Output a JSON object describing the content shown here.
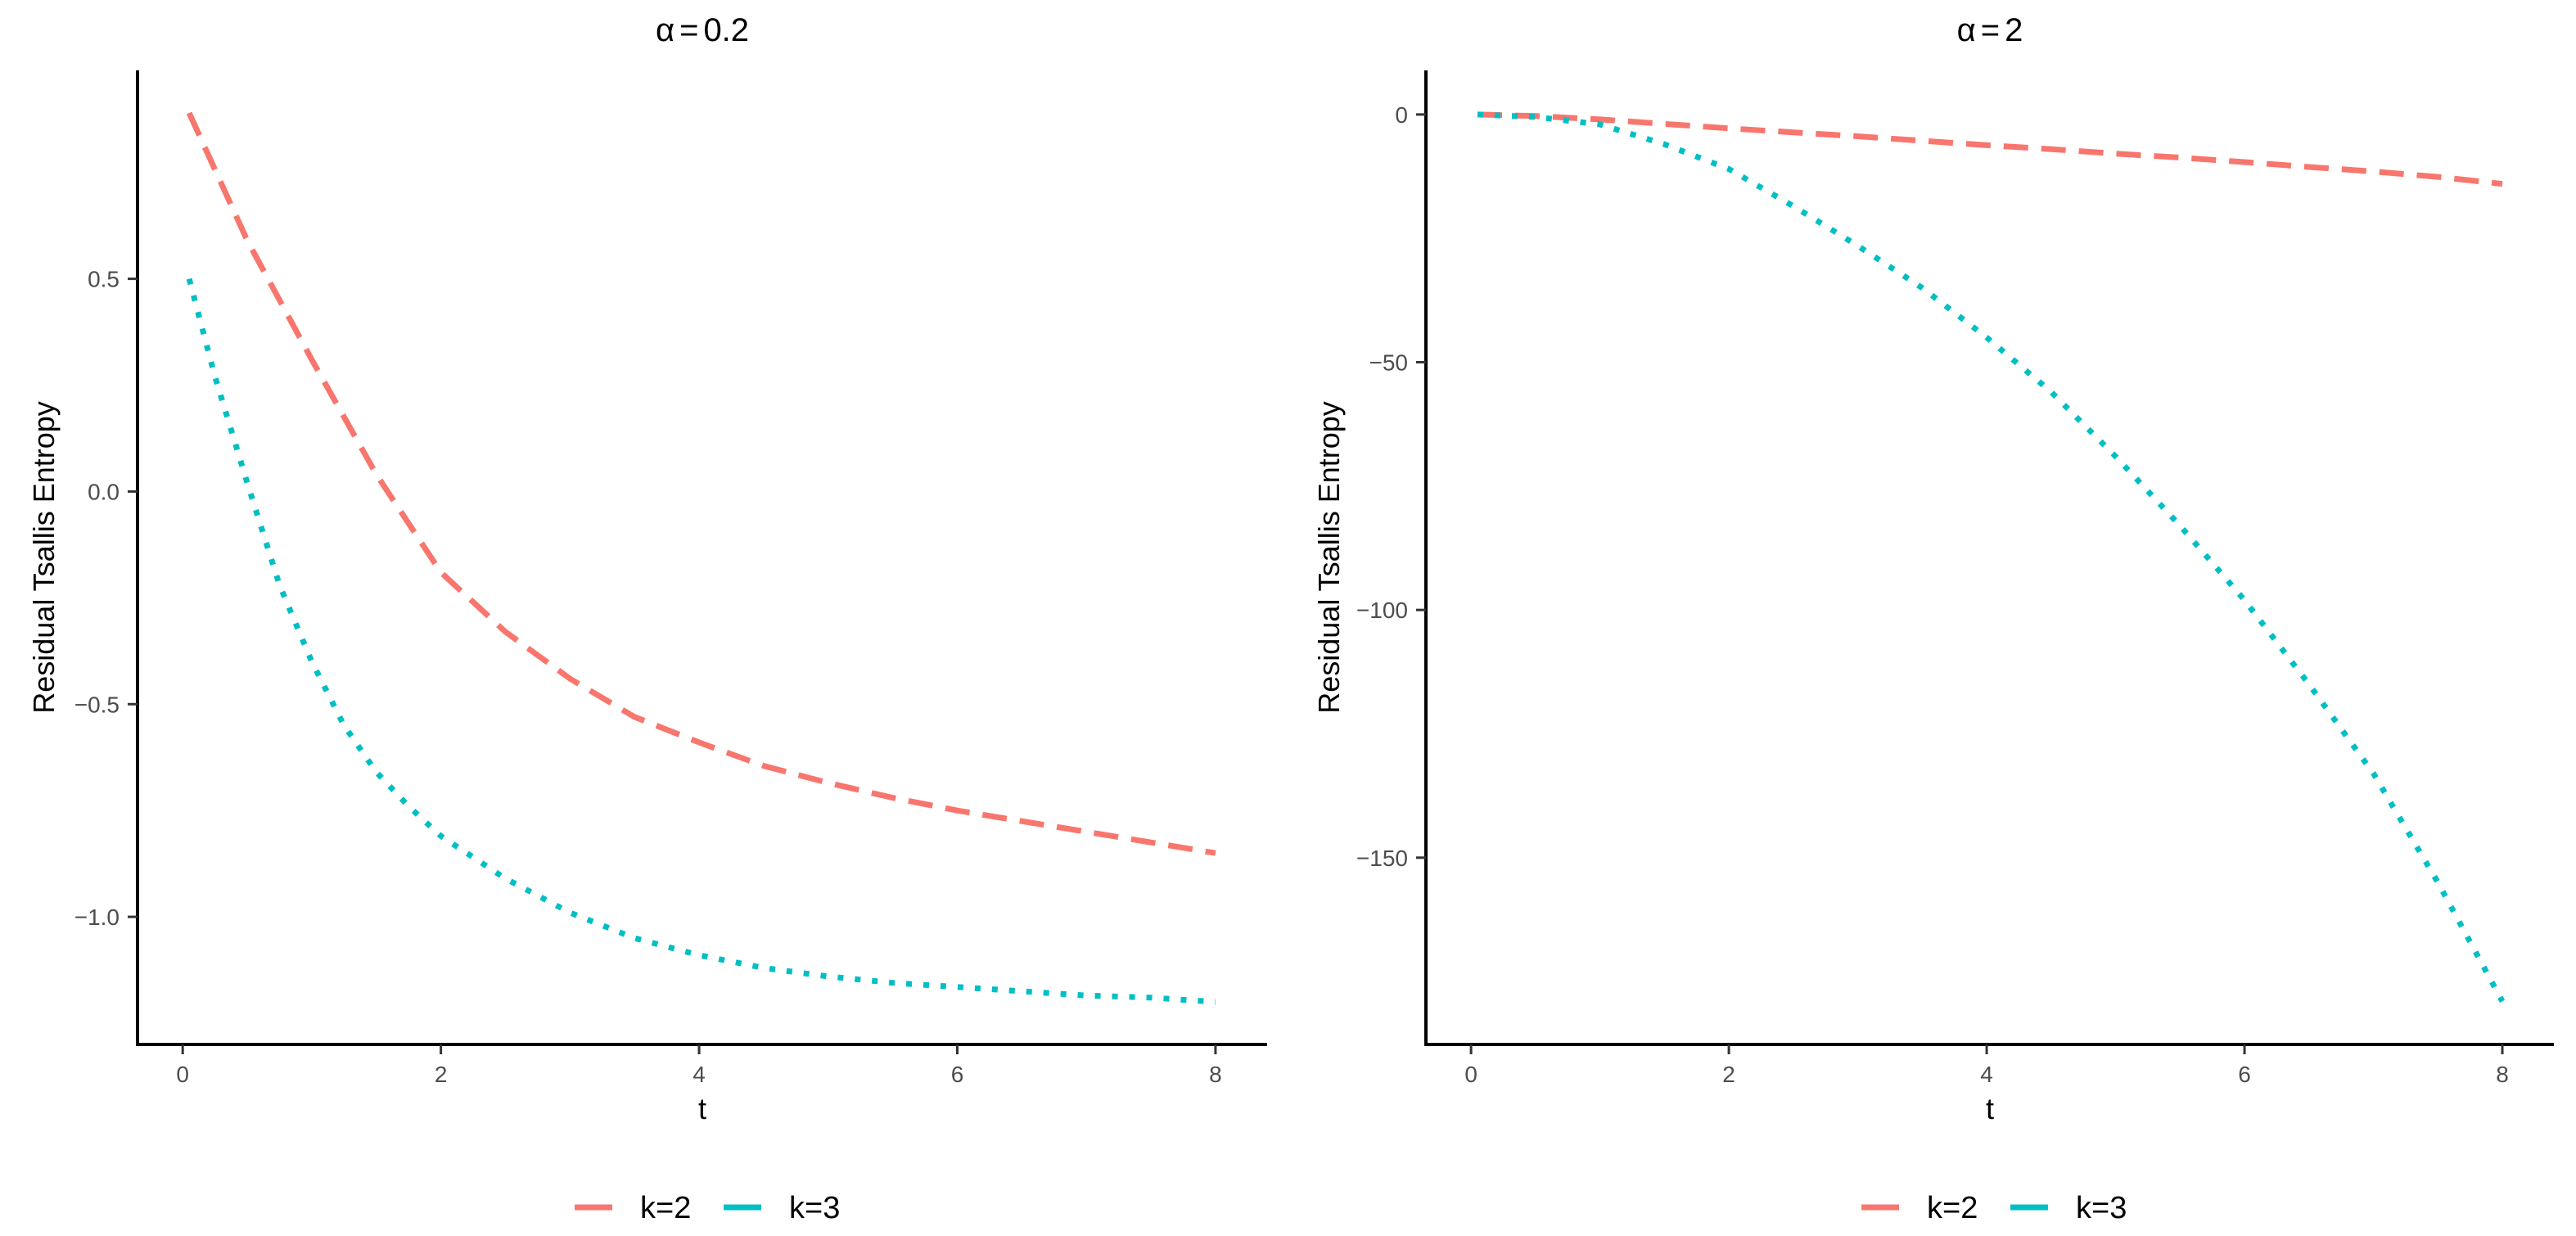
{
  "chart_data": [
    {
      "type": "line",
      "title": "α = 0.2",
      "title_symbol": "α",
      "title_eq": "=",
      "title_value": "0.2",
      "xlabel": "t",
      "ylabel": "Residual Tsallis Entropy",
      "xlim": [
        -0.35,
        8.4
      ],
      "ylim": [
        -1.3,
        0.99
      ],
      "xticks": [
        0,
        2,
        4,
        6,
        8
      ],
      "xtick_labels": [
        "0",
        "2",
        "4",
        "6",
        "8"
      ],
      "yticks": [
        -1.0,
        -0.5,
        0.0,
        0.5
      ],
      "ytick_labels": [
        "−1.0",
        "−0.5",
        "0.0",
        "0.5"
      ],
      "grid": false,
      "series": [
        {
          "name": "k=2",
          "color": "#F8766D",
          "linestyle": "dashed",
          "x": [
            0.05,
            0.5,
            1.0,
            1.5,
            2.0,
            2.5,
            3.0,
            3.5,
            4.0,
            4.5,
            5.0,
            5.5,
            6.0,
            6.5,
            7.0,
            7.5,
            8.0
          ],
          "y": [
            0.89,
            0.59,
            0.31,
            0.04,
            -0.19,
            -0.33,
            -0.44,
            -0.53,
            -0.59,
            -0.645,
            -0.685,
            -0.72,
            -0.75,
            -0.775,
            -0.8,
            -0.825,
            -0.85
          ]
        },
        {
          "name": "k=3",
          "color": "#00BFC4",
          "linestyle": "dotted",
          "x": [
            0.05,
            0.25,
            0.5,
            0.75,
            1.0,
            1.25,
            1.5,
            1.75,
            2.0,
            2.5,
            3.0,
            3.5,
            4.0,
            4.5,
            5.0,
            5.5,
            6.0,
            6.5,
            7.0,
            7.5,
            8.0
          ],
          "y": [
            0.5,
            0.27,
            0.02,
            -0.22,
            -0.4,
            -0.55,
            -0.66,
            -0.74,
            -0.81,
            -0.91,
            -0.99,
            -1.05,
            -1.09,
            -1.12,
            -1.14,
            -1.155,
            -1.165,
            -1.175,
            -1.185,
            -1.19,
            -1.2
          ]
        }
      ],
      "legend": {
        "position": "bottom",
        "entries": [
          "k=2",
          "k=3"
        ]
      }
    },
    {
      "type": "line",
      "title": "α = 2",
      "title_symbol": "α",
      "title_eq": "=",
      "title_value": "2",
      "xlabel": "t",
      "ylabel": "Residual Tsallis Entropy",
      "xlim": [
        -0.35,
        8.4
      ],
      "ylim": [
        -187.7,
        8.9
      ],
      "xticks": [
        0,
        2,
        4,
        6,
        8
      ],
      "xtick_labels": [
        "0",
        "2",
        "4",
        "6",
        "8"
      ],
      "yticks": [
        -150,
        -100,
        -50,
        0
      ],
      "ytick_labels": [
        "−150",
        "−100",
        "−50",
        "0"
      ],
      "grid": false,
      "series": [
        {
          "name": "k=2",
          "color": "#F8766D",
          "linestyle": "dashed",
          "x": [
            0.05,
            0.5,
            1.0,
            1.5,
            2.0,
            2.5,
            3.0,
            3.5,
            4.0,
            4.5,
            5.0,
            5.5,
            6.0,
            6.5,
            7.0,
            7.5,
            8.0
          ],
          "y": [
            0,
            -0.3,
            -1.0,
            -1.9,
            -2.8,
            -3.6,
            -4.4,
            -5.3,
            -6.2,
            -7.0,
            -7.9,
            -8.7,
            -9.6,
            -10.6,
            -11.5,
            -12.6,
            -14.0
          ]
        },
        {
          "name": "k=3",
          "color": "#00BFC4",
          "linestyle": "dotted",
          "x": [
            0.05,
            0.5,
            1.0,
            1.5,
            2.0,
            2.5,
            3.0,
            3.5,
            4.0,
            4.5,
            5.0,
            5.5,
            6.0,
            6.5,
            7.0,
            7.5,
            8.0
          ],
          "y": [
            0,
            -0.5,
            -2.0,
            -6.0,
            -11.0,
            -18.5,
            -26.5,
            -35.0,
            -45.0,
            -56.0,
            -69.0,
            -83.0,
            -98.0,
            -115.0,
            -133.0,
            -155.0,
            -179.0
          ]
        }
      ],
      "legend": {
        "position": "bottom",
        "entries": [
          "k=2",
          "k=3"
        ]
      }
    }
  ]
}
